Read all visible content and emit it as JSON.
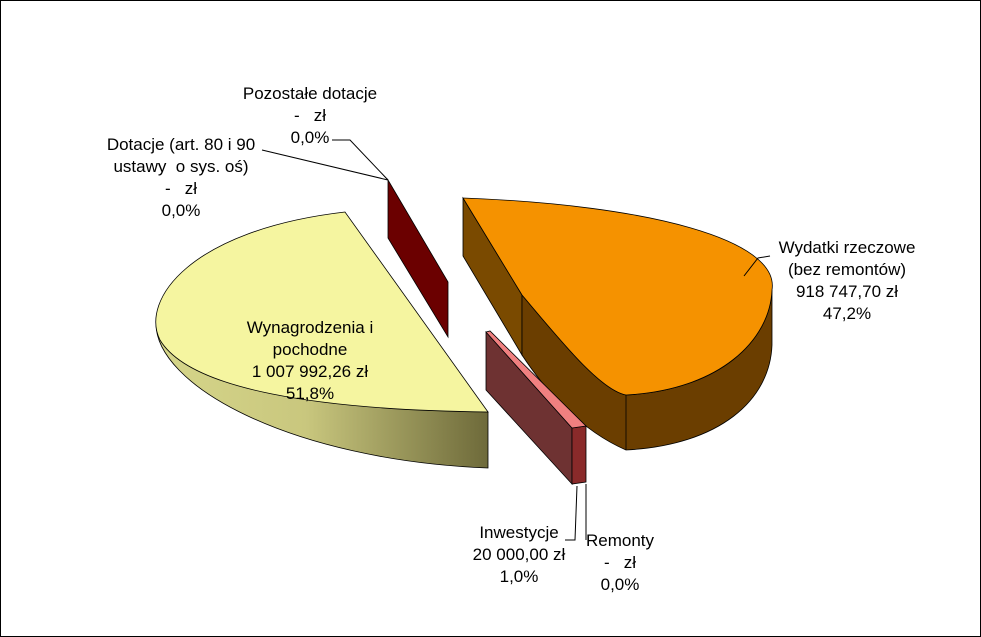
{
  "chart_data": {
    "type": "pie",
    "style": "3d-exploded",
    "currency": "zł",
    "slices": [
      {
        "name": "Wydatki rzeczowe (bez remontów)",
        "label_lines": [
          "Wydatki rzeczowe",
          "(bez remontów)"
        ],
        "value_text": "918 747,70 zł",
        "value": 918747.7,
        "percent_text": "47,2%",
        "percent": 47.2,
        "color": "#F59200"
      },
      {
        "name": "Remonty",
        "label_lines": [
          "Remonty"
        ],
        "value_text": "-   zł",
        "value": 0,
        "percent_text": "0,0%",
        "percent": 0.0,
        "color": "#7A1E1E"
      },
      {
        "name": "Inwestycje",
        "label_lines": [
          "Inwestycje"
        ],
        "value_text": "20 000,00 zł",
        "value": 20000.0,
        "percent_text": "1,0%",
        "percent": 1.0,
        "color": "#F08080"
      },
      {
        "name": "Wynagrodzenia i pochodne",
        "label_lines": [
          "Wynagrodzenia i",
          "pochodne"
        ],
        "value_text": "1 007 992,26 zł",
        "value": 1007992.26,
        "percent_text": "51,8%",
        "percent": 51.8,
        "color": "#F5F5A0"
      },
      {
        "name": "Dotacje (art. 80 i 90 ustawy o sys. oś)",
        "label_lines": [
          "Dotacje (art. 80 i 90",
          "ustawy  o sys. oś)"
        ],
        "value_text": "-   zł",
        "value": 0,
        "percent_text": "0,0%",
        "percent": 0.0,
        "color": "#6B0000"
      },
      {
        "name": "Pozostałe dotacje",
        "label_lines": [
          "Pozostałe dotacje"
        ],
        "value_text": "-   zł",
        "value": 0,
        "percent_text": "0,0%",
        "percent": 0.0,
        "color": "#6B0000"
      }
    ]
  }
}
